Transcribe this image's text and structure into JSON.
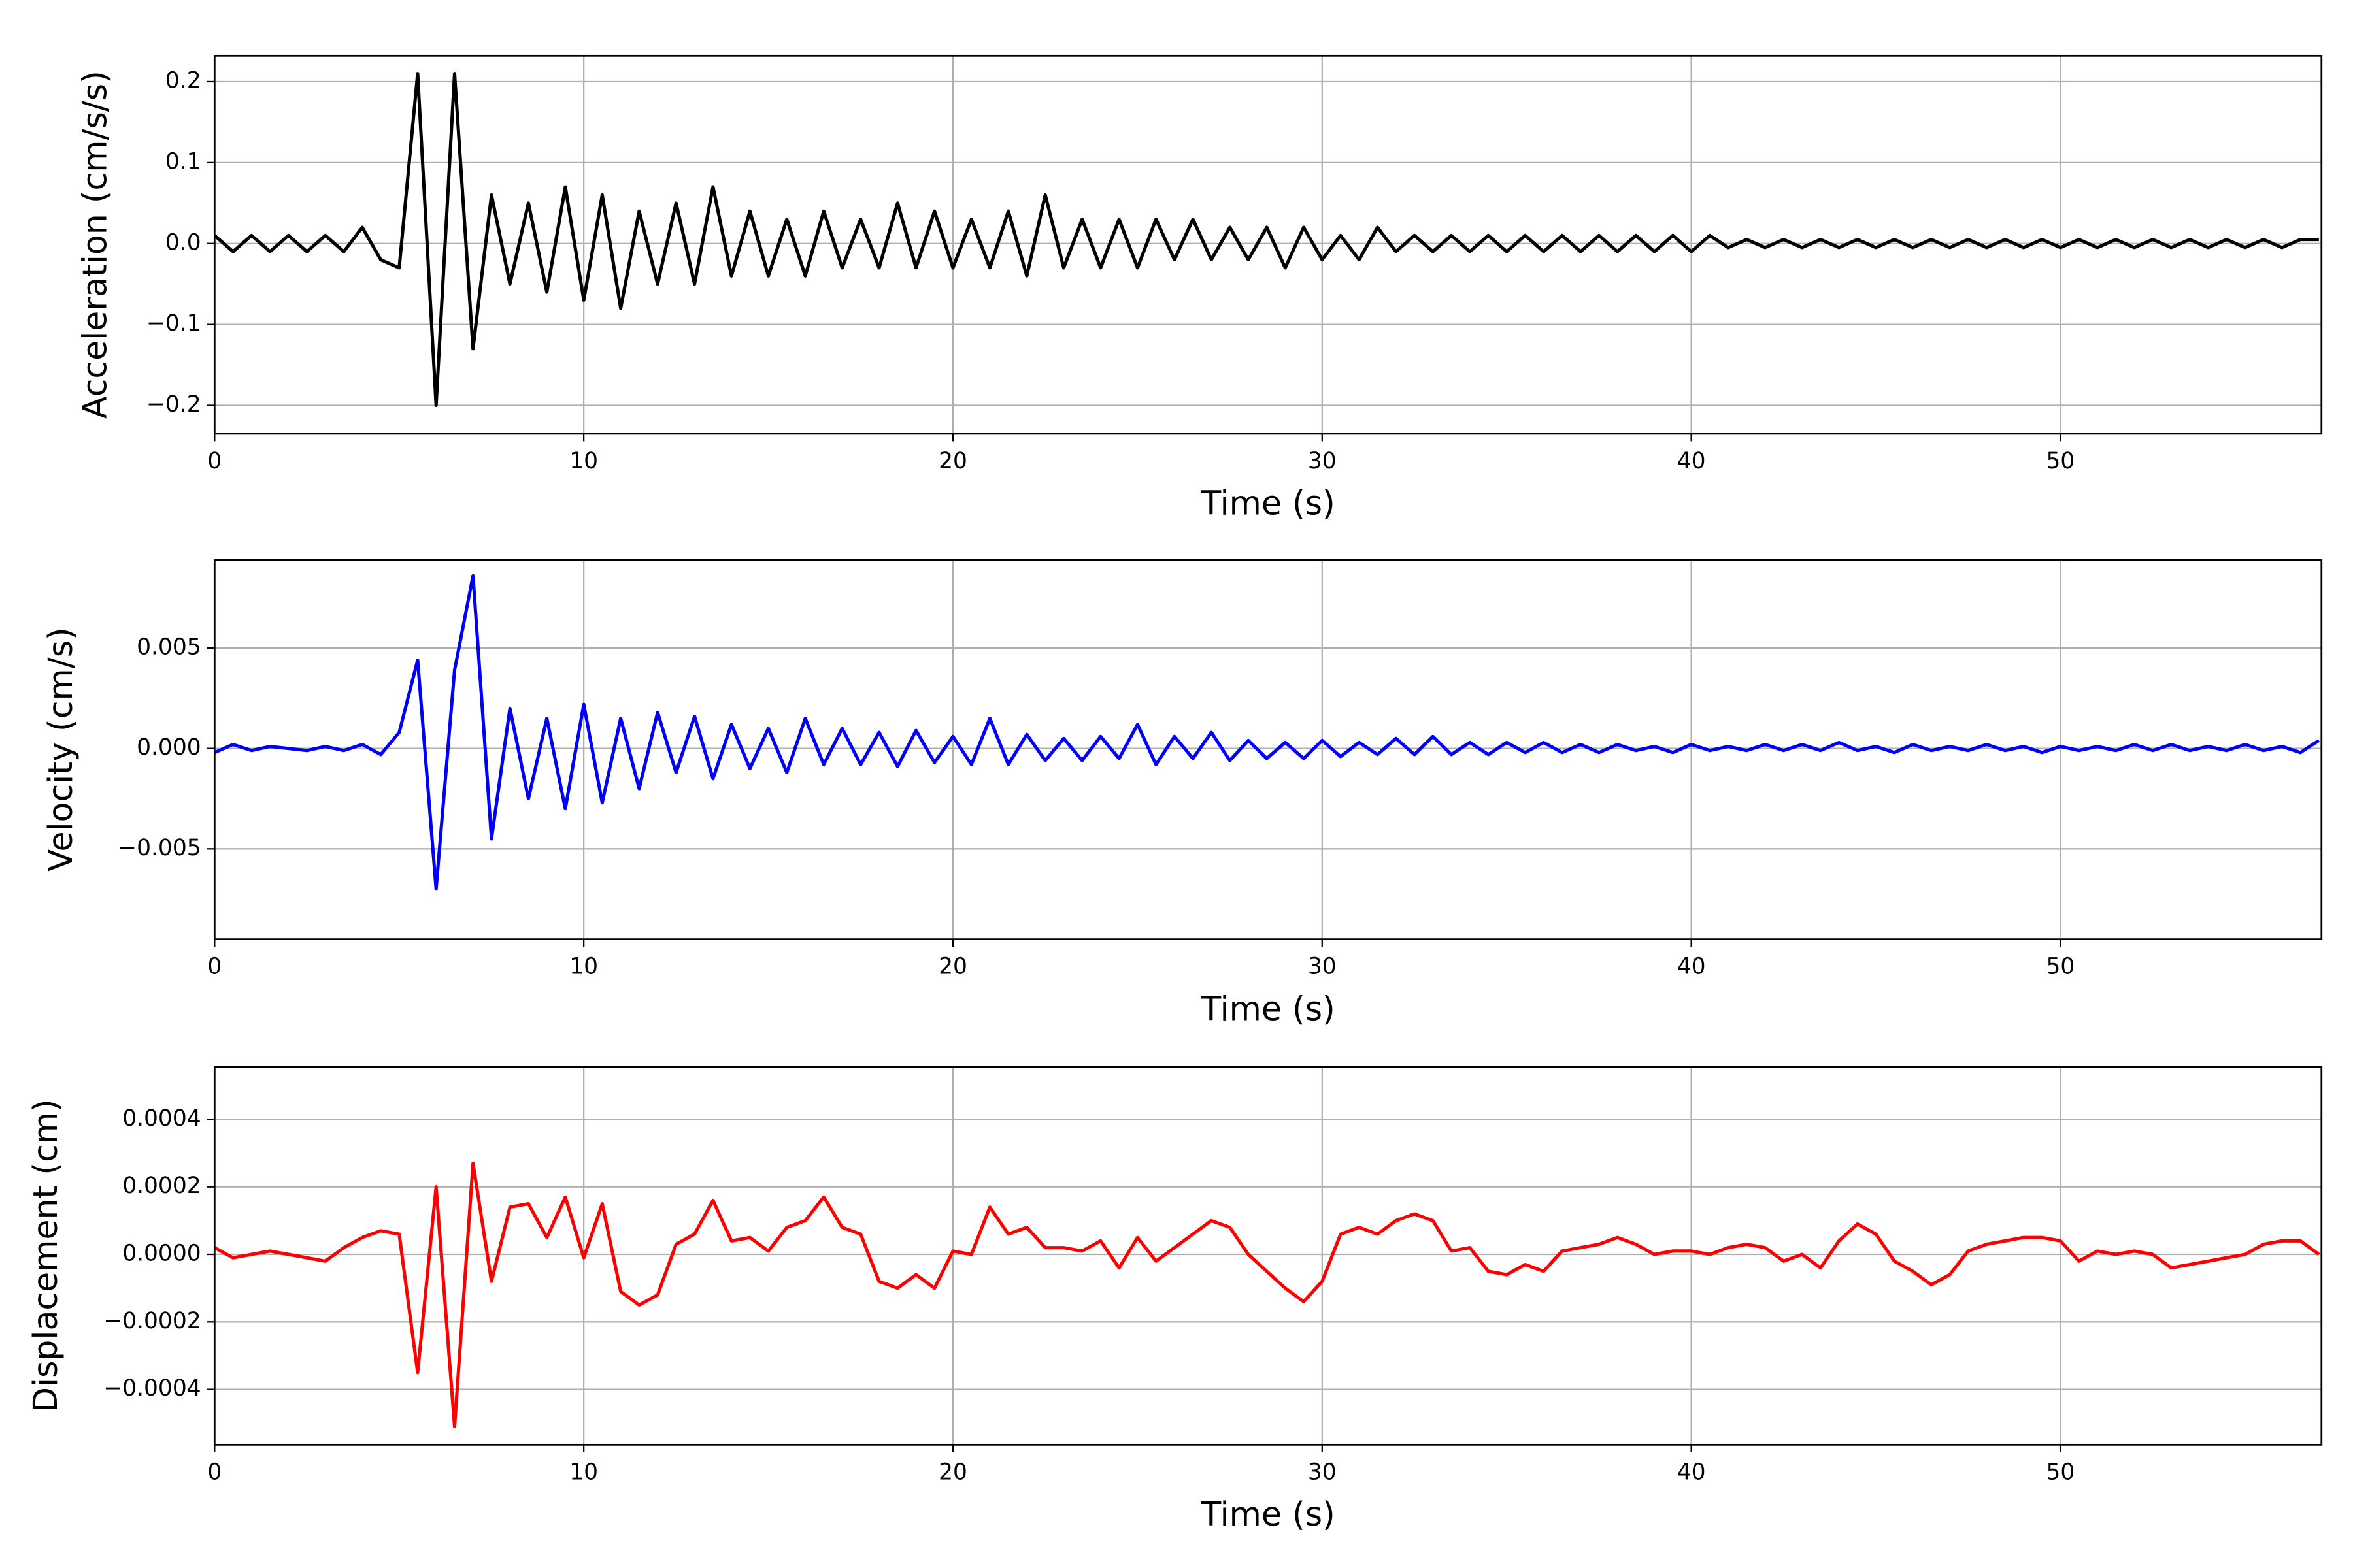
{
  "chart_data": [
    {
      "type": "line",
      "ylabel": "Acceleration (cm/s/s)",
      "xlabel": "Time (s)",
      "color": "#000000",
      "grid": true,
      "xlim": [
        0,
        57.07
      ],
      "xticks": [
        0,
        10,
        20,
        30,
        40,
        50
      ],
      "ylim": [
        -0.235,
        0.232
      ],
      "yticks": [
        {
          "value": -0.2,
          "label": "−0.2"
        },
        {
          "value": -0.1,
          "label": "−0.1"
        },
        {
          "value": 0,
          "label": "0.0"
        },
        {
          "value": 0.1,
          "label": "0.1"
        },
        {
          "value": 0.2,
          "label": "0.2"
        }
      ],
      "x": [
        0,
        0.5,
        1,
        1.5,
        2,
        2.5,
        3,
        3.5,
        4,
        4.5,
        5,
        5.5,
        6,
        6.5,
        7,
        7.5,
        8,
        8.5,
        9,
        9.5,
        10,
        10.5,
        11,
        11.5,
        12,
        12.5,
        13,
        13.5,
        14,
        14.5,
        15,
        15.5,
        16,
        16.5,
        17,
        17.5,
        18,
        18.5,
        19,
        19.5,
        20,
        20.5,
        21,
        21.5,
        22,
        22.5,
        23,
        23.5,
        24,
        24.5,
        25,
        25.5,
        26,
        26.5,
        27,
        27.5,
        28,
        28.5,
        29,
        29.5,
        30,
        30.5,
        31,
        31.5,
        32,
        32.5,
        33,
        33.5,
        34,
        34.5,
        35,
        35.5,
        36,
        36.5,
        37,
        37.5,
        38,
        38.5,
        39,
        39.5,
        40,
        40.5,
        41,
        41.5,
        42,
        42.5,
        43,
        43.5,
        44,
        44.5,
        45,
        45.5,
        46,
        46.5,
        47,
        47.5,
        48,
        48.5,
        49,
        49.5,
        50,
        50.5,
        51,
        51.5,
        52,
        52.5,
        53,
        53.5,
        54,
        54.5,
        55,
        55.5,
        56,
        56.5,
        57
      ],
      "values": [
        0.01,
        -0.01,
        0.01,
        -0.01,
        0.01,
        -0.01,
        0.01,
        -0.01,
        0.02,
        -0.02,
        -0.03,
        0.21,
        -0.2,
        0.21,
        -0.13,
        0.06,
        -0.05,
        0.05,
        -0.06,
        0.07,
        -0.07,
        0.06,
        -0.08,
        0.04,
        -0.05,
        0.05,
        -0.05,
        0.07,
        -0.04,
        0.04,
        -0.04,
        0.03,
        -0.04,
        0.04,
        -0.03,
        0.03,
        -0.03,
        0.05,
        -0.03,
        0.04,
        -0.03,
        0.03,
        -0.03,
        0.04,
        -0.04,
        0.06,
        -0.03,
        0.03,
        -0.03,
        0.03,
        -0.03,
        0.03,
        -0.02,
        0.03,
        -0.02,
        0.02,
        -0.02,
        0.02,
        -0.03,
        0.02,
        -0.02,
        0.01,
        -0.02,
        0.02,
        -0.01,
        0.01,
        -0.01,
        0.01,
        -0.01,
        0.01,
        -0.01,
        0.01,
        -0.01,
        0.01,
        -0.01,
        0.01,
        -0.01,
        0.01,
        -0.01,
        0.01,
        -0.01,
        0.01,
        -0.005,
        0.005,
        -0.005,
        0.005,
        -0.005,
        0.005,
        -0.005,
        0.005,
        -0.005,
        0.005,
        -0.005,
        0.005,
        -0.005,
        0.005,
        -0.005,
        0.005,
        -0.005,
        0.005,
        -0.005,
        0.005,
        -0.005,
        0.005,
        -0.005,
        0.005,
        -0.005,
        0.005,
        -0.005,
        0.005,
        -0.005,
        0.005,
        -0.005,
        0.005,
        0.005
      ]
    },
    {
      "type": "line",
      "ylabel": "Velocity (cm/s)",
      "xlabel": "Time (s)",
      "color": "#0000ff",
      "grid": true,
      "xlim": [
        0,
        57.07
      ],
      "xticks": [
        0,
        10,
        20,
        30,
        40,
        50
      ],
      "ylim": [
        -0.0095,
        0.0094
      ],
      "yticks": [
        {
          "value": -0.005,
          "label": "−0.005"
        },
        {
          "value": 0,
          "label": "0.000"
        },
        {
          "value": 0.005,
          "label": "0.005"
        }
      ],
      "x": [
        0,
        0.5,
        1,
        1.5,
        2,
        2.5,
        3,
        3.5,
        4,
        4.5,
        5,
        5.5,
        6,
        6.5,
        7,
        7.5,
        8,
        8.5,
        9,
        9.5,
        10,
        10.5,
        11,
        11.5,
        12,
        12.5,
        13,
        13.5,
        14,
        14.5,
        15,
        15.5,
        16,
        16.5,
        17,
        17.5,
        18,
        18.5,
        19,
        19.5,
        20,
        20.5,
        21,
        21.5,
        22,
        22.5,
        23,
        23.5,
        24,
        24.5,
        25,
        25.5,
        26,
        26.5,
        27,
        27.5,
        28,
        28.5,
        29,
        29.5,
        30,
        30.5,
        31,
        31.5,
        32,
        32.5,
        33,
        33.5,
        34,
        34.5,
        35,
        35.5,
        36,
        36.5,
        37,
        37.5,
        38,
        38.5,
        39,
        39.5,
        40,
        40.5,
        41,
        41.5,
        42,
        42.5,
        43,
        43.5,
        44,
        44.5,
        45,
        45.5,
        46,
        46.5,
        47,
        47.5,
        48,
        48.5,
        49,
        49.5,
        50,
        50.5,
        51,
        51.5,
        52,
        52.5,
        53,
        53.5,
        54,
        54.5,
        55,
        55.5,
        56,
        56.5,
        57
      ],
      "values": [
        -0.0002,
        0.0002,
        -0.0001,
        0.0001,
        0,
        -0.0001,
        0.0001,
        -0.0001,
        0.0002,
        -0.0003,
        0.0008,
        0.0044,
        -0.007,
        0.0039,
        0.0086,
        -0.0045,
        0.002,
        -0.0025,
        0.0015,
        -0.003,
        0.0022,
        -0.0027,
        0.0015,
        -0.002,
        0.0018,
        -0.0012,
        0.0016,
        -0.0015,
        0.0012,
        -0.001,
        0.001,
        -0.0012,
        0.0015,
        -0.0008,
        0.001,
        -0.0008,
        0.0008,
        -0.0009,
        0.0009,
        -0.0007,
        0.0006,
        -0.0008,
        0.0015,
        -0.0008,
        0.0007,
        -0.0006,
        0.0005,
        -0.0006,
        0.0006,
        -0.0005,
        0.0012,
        -0.0008,
        0.0006,
        -0.0005,
        0.0008,
        -0.0006,
        0.0004,
        -0.0005,
        0.0003,
        -0.0005,
        0.0004,
        -0.0004,
        0.0003,
        -0.0003,
        0.0005,
        -0.0003,
        0.0006,
        -0.0003,
        0.0003,
        -0.0003,
        0.0003,
        -0.0002,
        0.0003,
        -0.0002,
        0.0002,
        -0.0002,
        0.0002,
        -0.0001,
        0.0001,
        -0.0002,
        0.0002,
        -0.0001,
        0.0001,
        -0.0001,
        0.0002,
        -0.0001,
        0.0002,
        -0.0001,
        0.0003,
        -0.0001,
        0.0001,
        -0.0002,
        0.0002,
        -0.0001,
        0.0001,
        -0.0001,
        0.0002,
        -0.0001,
        0.0001,
        -0.0002,
        0.0001,
        -0.0001,
        0.0001,
        -0.0001,
        0.0002,
        -0.0001,
        0.0002,
        -0.0001,
        0.0001,
        -0.0001,
        0.0002,
        -0.0001,
        0.0001,
        -0.0002,
        0.0004
      ]
    },
    {
      "type": "line",
      "ylabel": "Displacement (cm)",
      "xlabel": "Time (s)",
      "color": "#ff0000",
      "grid": true,
      "xlim": [
        0,
        57.07
      ],
      "xticks": [
        0,
        10,
        20,
        30,
        40,
        50
      ],
      "ylim": [
        -0.000564,
        0.000556
      ],
      "yticks": [
        {
          "value": -0.0004,
          "label": "−0.0004"
        },
        {
          "value": -0.0002,
          "label": "−0.0002"
        },
        {
          "value": 0,
          "label": "0.0000"
        },
        {
          "value": 0.0002,
          "label": "0.0002"
        },
        {
          "value": 0.0004,
          "label": "0.0004"
        }
      ],
      "x": [
        0,
        0.5,
        1,
        1.5,
        2,
        2.5,
        3,
        3.5,
        4,
        4.5,
        5,
        5.5,
        6,
        6.5,
        7,
        7.5,
        8,
        8.5,
        9,
        9.5,
        10,
        10.5,
        11,
        11.5,
        12,
        12.5,
        13,
        13.5,
        14,
        14.5,
        15,
        15.5,
        16,
        16.5,
        17,
        17.5,
        18,
        18.5,
        19,
        19.5,
        20,
        20.5,
        21,
        21.5,
        22,
        22.5,
        23,
        23.5,
        24,
        24.5,
        25,
        25.5,
        26,
        26.5,
        27,
        27.5,
        28,
        28.5,
        29,
        29.5,
        30,
        30.5,
        31,
        31.5,
        32,
        32.5,
        33,
        33.5,
        34,
        34.5,
        35,
        35.5,
        36,
        36.5,
        37,
        37.5,
        38,
        38.5,
        39,
        39.5,
        40,
        40.5,
        41,
        41.5,
        42,
        42.5,
        43,
        43.5,
        44,
        44.5,
        45,
        45.5,
        46,
        46.5,
        47,
        47.5,
        48,
        48.5,
        49,
        49.5,
        50,
        50.5,
        51,
        51.5,
        52,
        52.5,
        53,
        53.5,
        54,
        54.5,
        55,
        55.5,
        56,
        56.5,
        57
      ],
      "values": [
        2e-05,
        -1e-05,
        0,
        1e-05,
        0,
        -1e-05,
        -2e-05,
        2e-05,
        5e-05,
        7e-05,
        6e-05,
        -0.00035,
        0.0002,
        -0.00051,
        0.00027,
        -8e-05,
        0.00014,
        0.00015,
        5e-05,
        0.00017,
        -1e-05,
        0.00015,
        -0.00011,
        -0.00015,
        -0.00012,
        3e-05,
        6e-05,
        0.00016,
        4e-05,
        5e-05,
        1e-05,
        8e-05,
        0.0001,
        0.00017,
        8e-05,
        6e-05,
        -8e-05,
        -0.0001,
        -6e-05,
        -0.0001,
        1e-05,
        0,
        0.00014,
        6e-05,
        8e-05,
        2e-05,
        2e-05,
        1e-05,
        4e-05,
        -4e-05,
        5e-05,
        -2e-05,
        2e-05,
        6e-05,
        0.0001,
        8e-05,
        0,
        -5e-05,
        -0.0001,
        -0.00014,
        -8e-05,
        6e-05,
        8e-05,
        6e-05,
        0.0001,
        0.00012,
        0.0001,
        1e-05,
        2e-05,
        -5e-05,
        -6e-05,
        -3e-05,
        -5e-05,
        1e-05,
        2e-05,
        3e-05,
        5e-05,
        3e-05,
        0,
        1e-05,
        1e-05,
        0,
        2e-05,
        3e-05,
        2e-05,
        -2e-05,
        0,
        -4e-05,
        4e-05,
        9e-05,
        6e-05,
        -2e-05,
        -5e-05,
        -9e-05,
        -6e-05,
        1e-05,
        3e-05,
        4e-05,
        5e-05,
        5e-05,
        4e-05,
        -2e-05,
        1e-05,
        0,
        1e-05,
        0,
        -4e-05,
        -3e-05,
        -2e-05,
        -1e-05,
        0,
        3e-05,
        4e-05,
        4e-05,
        0
      ]
    }
  ]
}
